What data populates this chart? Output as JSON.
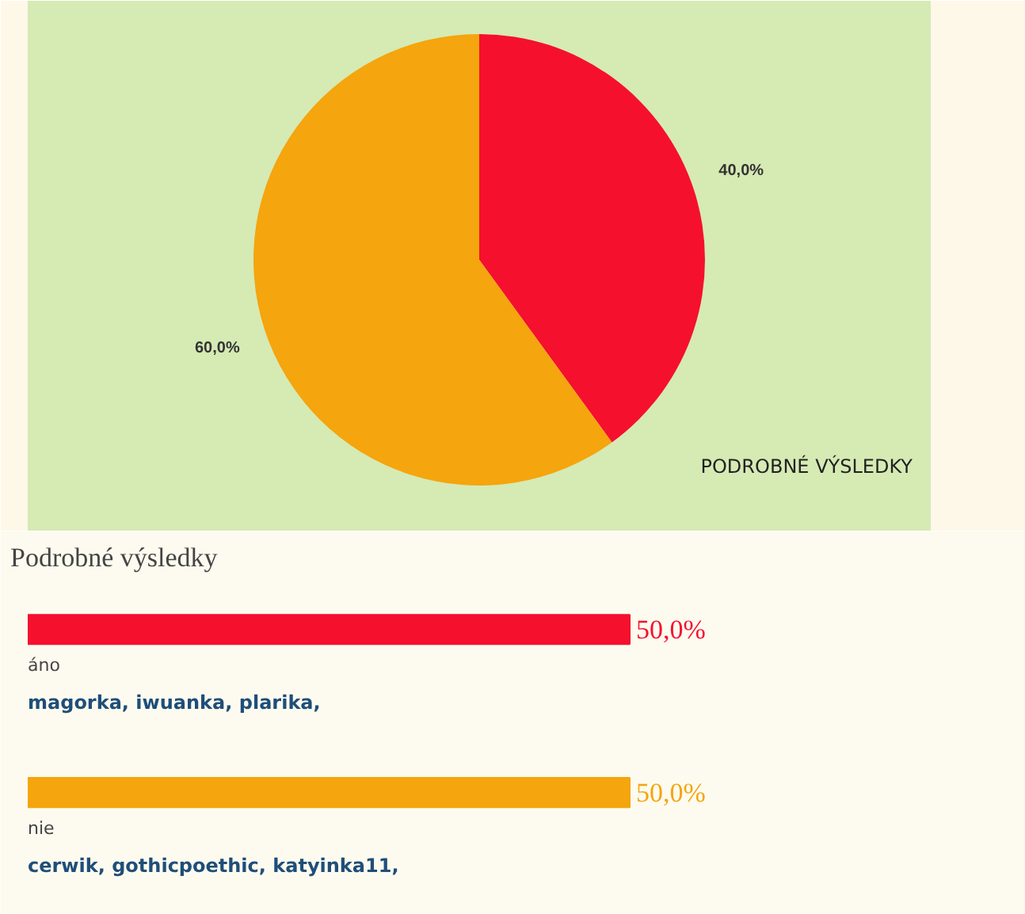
{
  "chart_data": [
    {
      "type": "pie",
      "categories": [
        null,
        null
      ],
      "values": [
        40,
        60
      ],
      "colors": [
        "#f5102e",
        "#f5a50d"
      ],
      "value_labels": [
        "40,0%",
        "60,0%"
      ],
      "annotations": [
        "PODROBNÉ VÝSLEDKY"
      ]
    },
    {
      "type": "bar",
      "orientation": "horizontal",
      "title": "Podrobné výsledky",
      "categories": [
        "áno",
        "nie"
      ],
      "values": [
        50,
        50
      ],
      "colors": [
        "#f5102e",
        "#f5a50d"
      ],
      "value_labels": [
        "50,0%",
        "50,0%"
      ],
      "tick_labels": false,
      "annotations": [
        "magorka, iwuanka, plarika,",
        "cerwik, gothicpoethic, katyinka11,"
      ]
    }
  ]
}
